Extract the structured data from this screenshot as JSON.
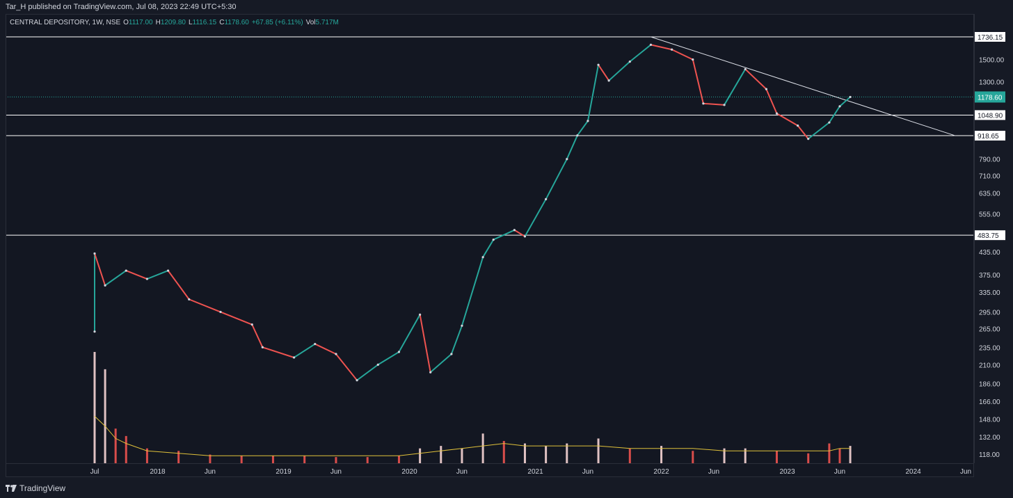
{
  "header": {
    "published_by": "Tar_H published on TradingView.com, Jul 08, 2023 22:49 UTC+5:30"
  },
  "legend": {
    "symbol": "CENTRAL DEPOSITORY, 1W, NSE",
    "open_label": "O",
    "open": "1117.00",
    "high_label": "H",
    "high": "1209.80",
    "low_label": "L",
    "low": "1116.15",
    "close_label": "C",
    "close": "1178.60",
    "change": "+67.85 (+6.11%)",
    "vol_label": "Vol",
    "vol": "5.717M"
  },
  "footer": {
    "brand": "TradingView"
  },
  "colors": {
    "up": "#26a69a",
    "down": "#ef5350",
    "background": "#131722",
    "grid": "#2a2e39",
    "level_line": "#ffffff",
    "volume_ma": "#e0c13a",
    "last_price_badge": "#26a69a"
  },
  "chart_data": {
    "type": "candlestick",
    "scale": "log",
    "y_ticks": [
      118,
      132,
      148,
      166,
      186,
      210,
      235,
      265,
      295,
      335,
      375,
      435,
      555,
      635,
      710,
      790,
      1300,
      1500
    ],
    "y_tick_labels": [
      "118.00",
      "132.00",
      "148.00",
      "166.00",
      "186.00",
      "210.00",
      "235.00",
      "265.00",
      "295.00",
      "335.00",
      "375.00",
      "435.00",
      "555.00",
      "635.00",
      "710.00",
      "790.00",
      "1300.00",
      "1500.00"
    ],
    "x_ticks": [
      {
        "date": "2017-07",
        "label": "Jul"
      },
      {
        "date": "2018-01",
        "label": "2018"
      },
      {
        "date": "2018-06",
        "label": "Jun"
      },
      {
        "date": "2019-01",
        "label": "2019"
      },
      {
        "date": "2019-06",
        "label": "Jun"
      },
      {
        "date": "2020-01",
        "label": "2020"
      },
      {
        "date": "2020-06",
        "label": "Jun"
      },
      {
        "date": "2021-01",
        "label": "2021"
      },
      {
        "date": "2021-06",
        "label": "Jun"
      },
      {
        "date": "2022-01",
        "label": "2022"
      },
      {
        "date": "2022-06",
        "label": "Jun"
      },
      {
        "date": "2023-01",
        "label": "2023"
      },
      {
        "date": "2023-06",
        "label": "Jun"
      },
      {
        "date": "2024-01",
        "label": "2024"
      },
      {
        "date": "2024-06",
        "label": "Jun"
      }
    ],
    "horizontal_levels": [
      {
        "value": 1736.15,
        "label": "1736.15"
      },
      {
        "value": 1048.9,
        "label": "1048.90"
      },
      {
        "value": 918.65,
        "label": "918.65"
      },
      {
        "value": 483.75,
        "label": "483.75"
      }
    ],
    "last_price": {
      "value": 1178.6,
      "label": "1178.60"
    },
    "trendline": {
      "start": {
        "date": "2021-12",
        "price": 1736.15
      },
      "end": {
        "date": "2024-05",
        "price": 918.65
      }
    },
    "close_path": [
      {
        "date": "2017-07",
        "price": 260
      },
      {
        "date": "2017-07",
        "price": 430
      },
      {
        "date": "2017-08",
        "price": 350
      },
      {
        "date": "2017-10",
        "price": 385
      },
      {
        "date": "2017-12",
        "price": 365
      },
      {
        "date": "2018-02",
        "price": 385
      },
      {
        "date": "2018-04",
        "price": 320
      },
      {
        "date": "2018-07",
        "price": 295
      },
      {
        "date": "2018-10",
        "price": 272
      },
      {
        "date": "2018-11",
        "price": 235
      },
      {
        "date": "2019-02",
        "price": 220
      },
      {
        "date": "2019-04",
        "price": 240
      },
      {
        "date": "2019-06",
        "price": 225
      },
      {
        "date": "2019-08",
        "price": 190
      },
      {
        "date": "2019-10",
        "price": 210
      },
      {
        "date": "2019-12",
        "price": 228
      },
      {
        "date": "2020-02",
        "price": 290
      },
      {
        "date": "2020-03",
        "price": 200
      },
      {
        "date": "2020-05",
        "price": 225
      },
      {
        "date": "2020-06",
        "price": 270
      },
      {
        "date": "2020-08",
        "price": 420
      },
      {
        "date": "2020-09",
        "price": 470
      },
      {
        "date": "2020-11",
        "price": 500
      },
      {
        "date": "2020-12",
        "price": 480
      },
      {
        "date": "2021-02",
        "price": 610
      },
      {
        "date": "2021-04",
        "price": 790
      },
      {
        "date": "2021-05",
        "price": 920
      },
      {
        "date": "2021-06",
        "price": 1010
      },
      {
        "date": "2021-07",
        "price": 1450
      },
      {
        "date": "2021-08",
        "price": 1310
      },
      {
        "date": "2021-10",
        "price": 1480
      },
      {
        "date": "2021-12",
        "price": 1650
      },
      {
        "date": "2022-02",
        "price": 1600
      },
      {
        "date": "2022-04",
        "price": 1500
      },
      {
        "date": "2022-05",
        "price": 1130
      },
      {
        "date": "2022-07",
        "price": 1120
      },
      {
        "date": "2022-09",
        "price": 1410
      },
      {
        "date": "2022-11",
        "price": 1240
      },
      {
        "date": "2022-12",
        "price": 1060
      },
      {
        "date": "2023-02",
        "price": 980
      },
      {
        "date": "2023-03",
        "price": 900
      },
      {
        "date": "2023-05",
        "price": 1000
      },
      {
        "date": "2023-06",
        "price": 1110
      },
      {
        "date": "2023-07",
        "price": 1178.6
      }
    ],
    "volume": {
      "dates": [
        "2017-07",
        "2017-08",
        "2017-09",
        "2017-10",
        "2017-12",
        "2018-03",
        "2018-06",
        "2018-09",
        "2018-12",
        "2019-03",
        "2019-06",
        "2019-09",
        "2019-12",
        "2020-02",
        "2020-04",
        "2020-06",
        "2020-08",
        "2020-10",
        "2020-12",
        "2021-02",
        "2021-04",
        "2021-07",
        "2021-10",
        "2022-01",
        "2022-04",
        "2022-07",
        "2022-09",
        "2022-12",
        "2023-03",
        "2023-05",
        "2023-06",
        "2023-07"
      ],
      "values": [
        4.5,
        3.8,
        1.4,
        1.1,
        0.6,
        0.5,
        0.35,
        0.3,
        0.3,
        0.3,
        0.25,
        0.25,
        0.3,
        0.6,
        0.7,
        0.6,
        1.2,
        0.9,
        0.8,
        0.7,
        0.8,
        1.0,
        0.6,
        0.7,
        0.5,
        0.6,
        0.6,
        0.5,
        0.4,
        0.8,
        0.6,
        0.7
      ],
      "colors": [
        "up",
        "up",
        "down",
        "down",
        "down",
        "down",
        "down",
        "down",
        "down",
        "down",
        "down",
        "down",
        "down",
        "up",
        "up",
        "up",
        "up",
        "down",
        "up",
        "up",
        "up",
        "up",
        "down",
        "up",
        "down",
        "up",
        "up",
        "down",
        "down",
        "down",
        "down",
        "up"
      ],
      "moving_average": [
        1.9,
        1.5,
        1.0,
        0.8,
        0.5,
        0.4,
        0.3,
        0.3,
        0.3,
        0.3,
        0.3,
        0.3,
        0.3,
        0.4,
        0.5,
        0.6,
        0.7,
        0.8,
        0.7,
        0.7,
        0.7,
        0.7,
        0.6,
        0.6,
        0.6,
        0.5,
        0.5,
        0.5,
        0.5,
        0.5,
        0.6,
        0.6
      ]
    }
  }
}
